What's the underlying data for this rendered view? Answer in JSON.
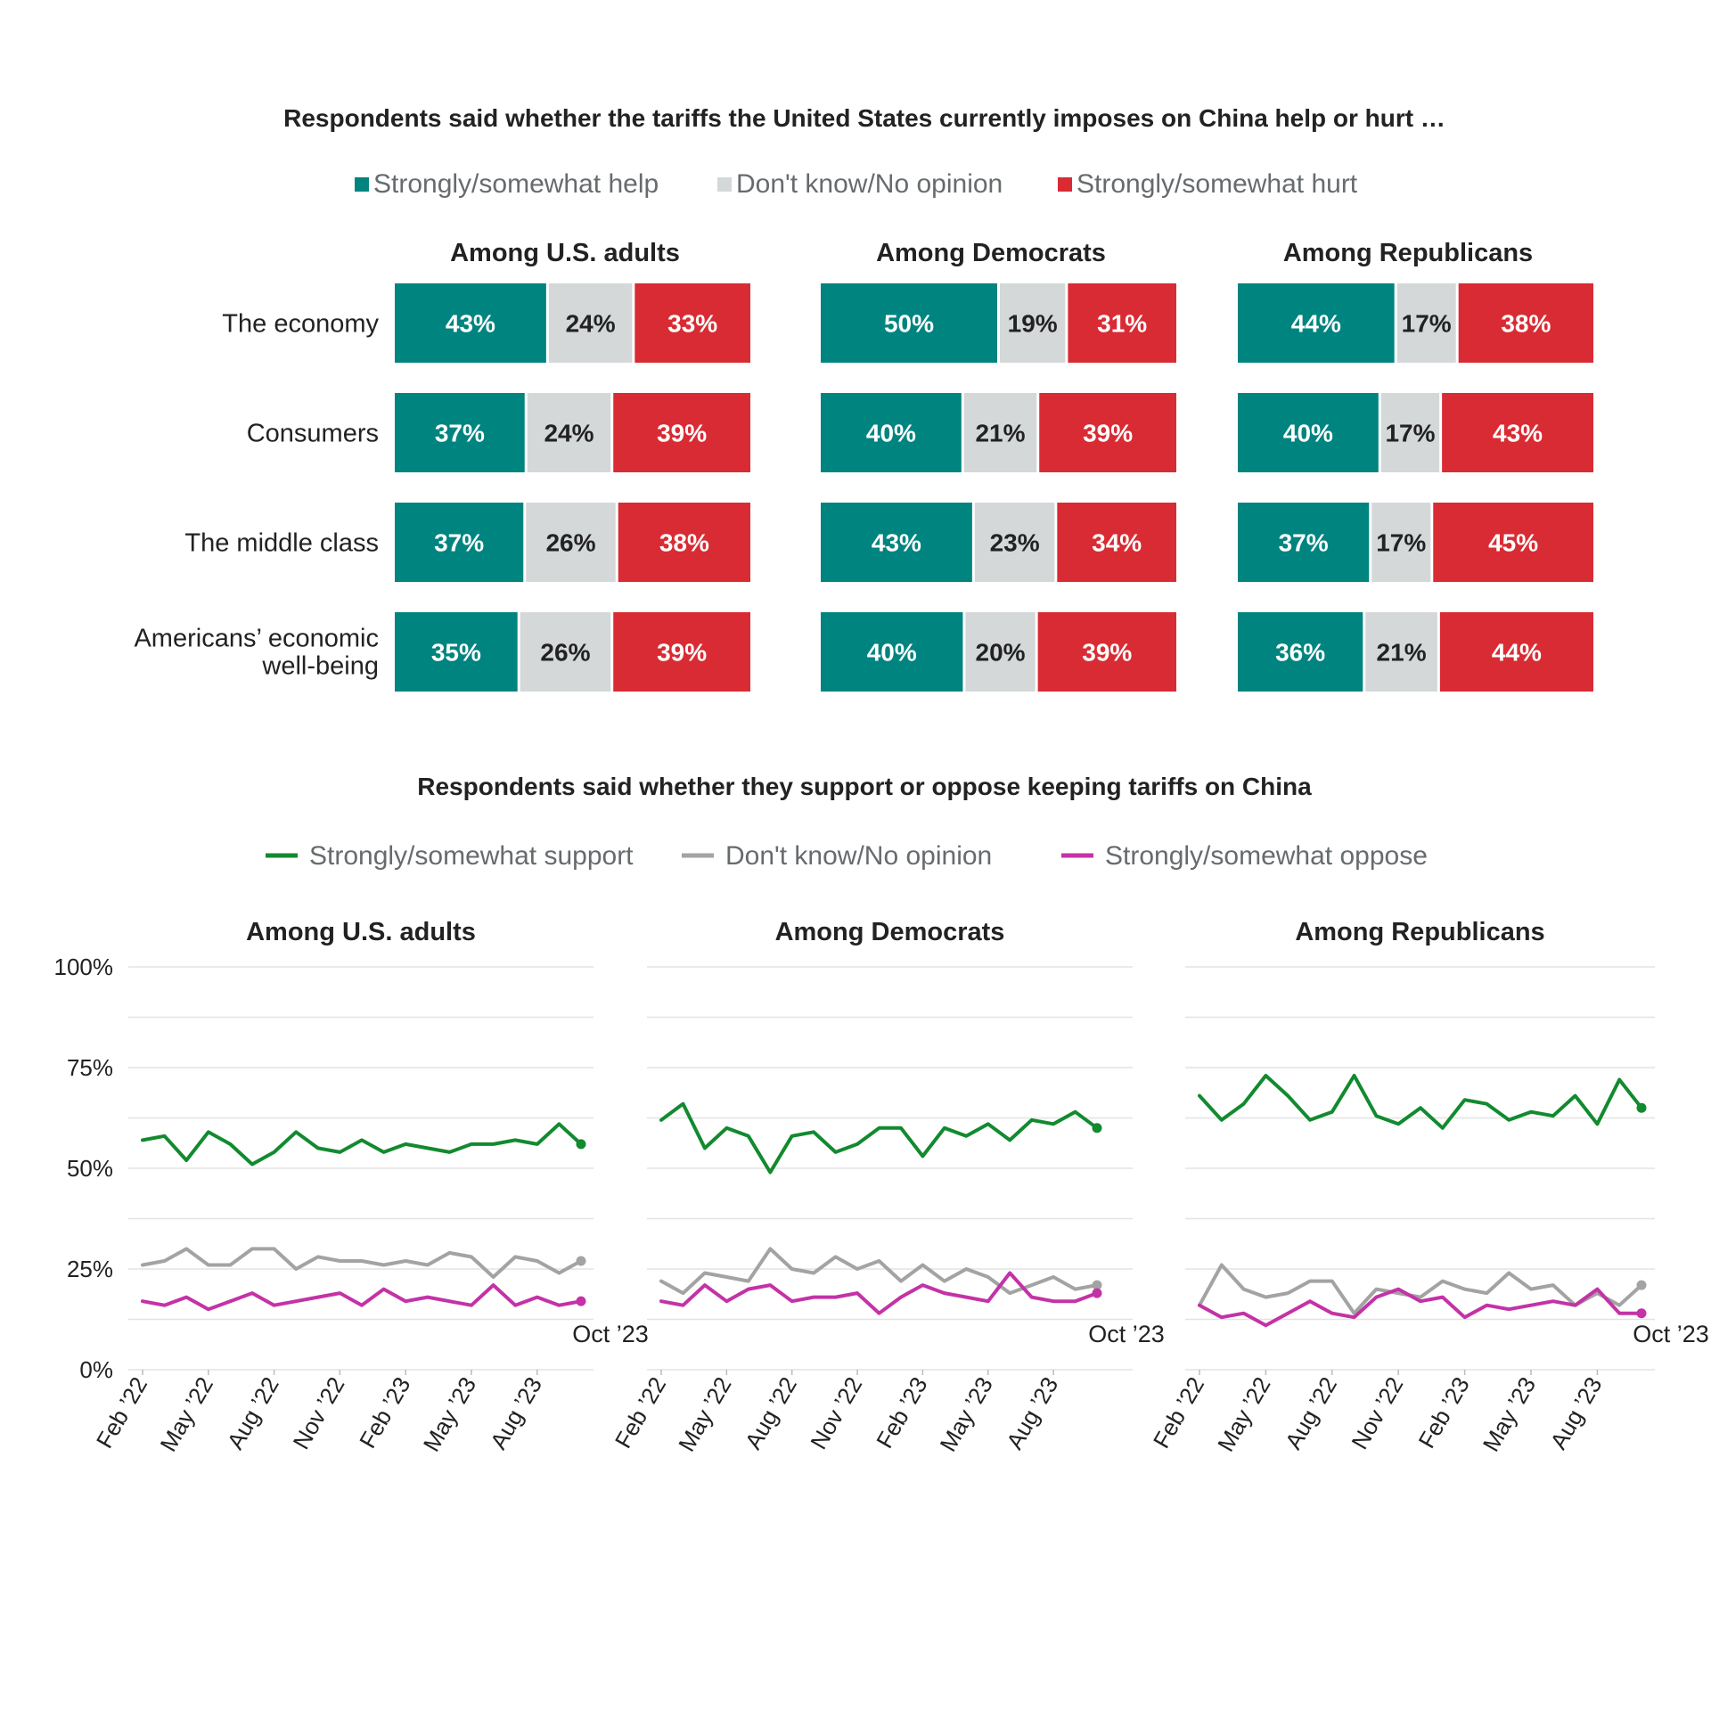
{
  "colors": {
    "help": "#00847f",
    "dont_know_bar": "#d5d8d9",
    "hurt": "#d92b33",
    "support": "#128a2f",
    "dont_know_line": "#a3a3a3",
    "oppose": "#c432a6",
    "title_text": "#222222",
    "legend_text": "#666b6e",
    "grid": "#e3e3e3"
  },
  "chart_data": [
    {
      "type": "bar",
      "stacked": true,
      "orientation": "horizontal",
      "title": "Respondents said whether the tariffs the United States currently imposes on China help or hurt …",
      "legend": [
        "Strongly/somewhat help",
        "Don't know/No opinion",
        "Strongly/somewhat hurt"
      ],
      "categories": [
        "The economy",
        "Consumers",
        "The middle class",
        "Americans’ economic well-being"
      ],
      "category_lines": [
        [
          "The economy"
        ],
        [
          "Consumers"
        ],
        [
          "The middle class"
        ],
        [
          "Americans’ economic",
          "well-being"
        ]
      ],
      "panels": [
        {
          "title": "Among U.S. adults",
          "series": [
            {
              "name": "Strongly/somewhat help",
              "values": [
                43,
                37,
                37,
                35
              ]
            },
            {
              "name": "Don't know/No opinion",
              "values": [
                24,
                24,
                26,
                26
              ]
            },
            {
              "name": "Strongly/somewhat hurt",
              "values": [
                33,
                39,
                38,
                39
              ]
            }
          ]
        },
        {
          "title": "Among Democrats",
          "series": [
            {
              "name": "Strongly/somewhat help",
              "values": [
                50,
                40,
                43,
                40
              ]
            },
            {
              "name": "Don't know/No opinion",
              "values": [
                19,
                21,
                23,
                20
              ]
            },
            {
              "name": "Strongly/somewhat hurt",
              "values": [
                31,
                39,
                34,
                39
              ]
            }
          ]
        },
        {
          "title": "Among Republicans",
          "series": [
            {
              "name": "Strongly/somewhat help",
              "values": [
                44,
                40,
                37,
                36
              ]
            },
            {
              "name": "Don't know/No opinion",
              "values": [
                17,
                17,
                17,
                21
              ]
            },
            {
              "name": "Strongly/somewhat hurt",
              "values": [
                38,
                43,
                45,
                44
              ]
            }
          ]
        }
      ]
    },
    {
      "type": "line",
      "title": "Respondents said whether they support or oppose keeping tariffs on China",
      "legend": [
        "Strongly/somewhat support",
        "Don't know/No opinion",
        "Strongly/somewhat oppose"
      ],
      "ylim": [
        0,
        100
      ],
      "y_ticks": [
        0,
        25,
        50,
        75,
        100
      ],
      "y_tick_labels": [
        "0%",
        "25%",
        "50%",
        "75%",
        "100%"
      ],
      "x_tick_labels": [
        "Feb ’22",
        "May ’22",
        "Aug ’22",
        "Nov ’22",
        "Feb ’23",
        "May ’23",
        "Aug ’23"
      ],
      "end_label": "Oct ’23",
      "panels": [
        {
          "title": "Among U.S. adults",
          "series": [
            {
              "name": "Strongly/somewhat support",
              "values": [
                57,
                58,
                52,
                59,
                56,
                51,
                54,
                59,
                55,
                54,
                57,
                54,
                56,
                55,
                54,
                56,
                56,
                57,
                56,
                61,
                56
              ]
            },
            {
              "name": "Don't know/No opinion",
              "values": [
                26,
                27,
                30,
                26,
                26,
                30,
                30,
                25,
                28,
                27,
                27,
                26,
                27,
                26,
                29,
                28,
                23,
                28,
                27,
                24,
                27
              ]
            },
            {
              "name": "Strongly/somewhat oppose",
              "values": [
                17,
                16,
                18,
                15,
                17,
                19,
                16,
                17,
                18,
                19,
                16,
                20,
                17,
                18,
                17,
                16,
                21,
                16,
                18,
                16,
                17
              ]
            }
          ]
        },
        {
          "title": "Among Democrats",
          "series": [
            {
              "name": "Strongly/somewhat support",
              "values": [
                62,
                66,
                55,
                60,
                58,
                49,
                58,
                59,
                54,
                56,
                60,
                60,
                53,
                60,
                58,
                61,
                57,
                62,
                61,
                64,
                60
              ]
            },
            {
              "name": "Don't know/No opinion",
              "values": [
                22,
                19,
                24,
                23,
                22,
                30,
                25,
                24,
                28,
                25,
                27,
                22,
                26,
                22,
                25,
                23,
                19,
                21,
                23,
                20,
                21
              ]
            },
            {
              "name": "Strongly/somewhat oppose",
              "values": [
                17,
                16,
                21,
                17,
                20,
                21,
                17,
                18,
                18,
                19,
                14,
                18,
                21,
                19,
                18,
                17,
                24,
                18,
                17,
                17,
                19
              ]
            }
          ]
        },
        {
          "title": "Among Republicans",
          "series": [
            {
              "name": "Strongly/somewhat support",
              "values": [
                68,
                62,
                66,
                73,
                68,
                62,
                64,
                73,
                63,
                61,
                65,
                60,
                67,
                66,
                62,
                64,
                63,
                68,
                61,
                72,
                65
              ]
            },
            {
              "name": "Don't know/No opinion",
              "values": [
                16,
                26,
                20,
                18,
                19,
                22,
                22,
                14,
                20,
                19,
                18,
                22,
                20,
                19,
                24,
                20,
                21,
                16,
                19,
                16,
                21
              ]
            },
            {
              "name": "Strongly/somewhat oppose",
              "values": [
                16,
                13,
                14,
                11,
                14,
                17,
                14,
                13,
                18,
                20,
                17,
                18,
                13,
                16,
                15,
                16,
                17,
                16,
                20,
                14,
                14
              ]
            }
          ]
        }
      ]
    }
  ]
}
